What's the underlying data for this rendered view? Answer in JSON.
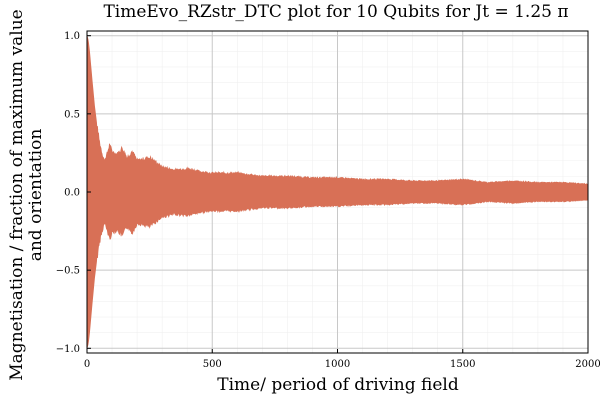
{
  "chart_data": {
    "type": "line",
    "title": "TimeEvo_RZstr_DTC plot for 10 Qubits for Jt = 1.25 π",
    "xlabel": "Time/ period of driving field",
    "ylabel_line1": "Magnetisation / fraction of maximum value",
    "ylabel_line2": "and orientation",
    "xlim": [
      0,
      2000
    ],
    "ylim": [
      -1.03,
      1.03
    ],
    "x_ticks": [
      0,
      500,
      1000,
      1500,
      2000
    ],
    "x_tick_labels": [
      "0",
      "500",
      "1000",
      "1500",
      "2000"
    ],
    "y_ticks": [
      -1.0,
      -0.5,
      0.0,
      0.5,
      1.0
    ],
    "y_tick_labels": [
      "−1.0",
      "−0.5",
      "0.0",
      "0.5",
      "1.0"
    ],
    "grid": true,
    "legend": "none",
    "series": [
      {
        "color": "#d87056",
        "style": "oscillating envelope (sign alternates each period)",
        "envelope": {
          "t": [
            0,
            5,
            10,
            20,
            30,
            40,
            50,
            60,
            70,
            80,
            90,
            100,
            120,
            140,
            160,
            180,
            200,
            250,
            300,
            350,
            400,
            450,
            500,
            600,
            700,
            800,
            900,
            1000,
            1100,
            1200,
            1300,
            1400,
            1500,
            1600,
            1700,
            1800,
            1900,
            2000
          ],
          "amplitude": [
            1.0,
            0.97,
            0.9,
            0.72,
            0.55,
            0.42,
            0.32,
            0.25,
            0.2,
            0.24,
            0.3,
            0.26,
            0.24,
            0.28,
            0.22,
            0.26,
            0.2,
            0.22,
            0.16,
            0.14,
            0.15,
            0.13,
            0.12,
            0.12,
            0.1,
            0.1,
            0.09,
            0.09,
            0.08,
            0.08,
            0.07,
            0.07,
            0.08,
            0.06,
            0.07,
            0.06,
            0.06,
            0.05
          ]
        }
      }
    ]
  }
}
